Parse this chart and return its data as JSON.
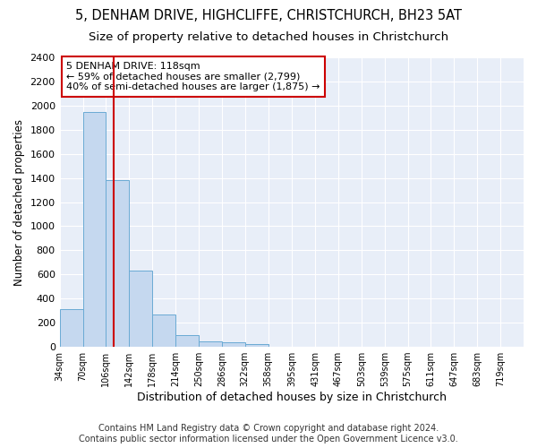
{
  "title1": "5, DENHAM DRIVE, HIGHCLIFFE, CHRISTCHURCH, BH23 5AT",
  "title2": "Size of property relative to detached houses in Christchurch",
  "xlabel": "Distribution of detached houses by size in Christchurch",
  "ylabel": "Number of detached properties",
  "bin_edges": [
    34,
    70,
    106,
    142,
    178,
    214,
    250,
    286,
    322,
    358,
    395,
    431,
    467,
    503,
    539,
    575,
    611,
    647,
    683,
    719,
    755
  ],
  "bar_heights": [
    315,
    1950,
    1380,
    630,
    270,
    100,
    45,
    40,
    25,
    0,
    0,
    0,
    0,
    0,
    0,
    0,
    0,
    0,
    0,
    0
  ],
  "bar_color": "#c5d8ef",
  "bar_edge_color": "#6aaad4",
  "property_size": 118,
  "annotation_title": "5 DENHAM DRIVE: 118sqm",
  "annotation_line1": "← 59% of detached houses are smaller (2,799)",
  "annotation_line2": "40% of semi-detached houses are larger (1,875) →",
  "vline_color": "#cc0000",
  "annotation_box_color": "#cc0000",
  "ylim": [
    0,
    2400
  ],
  "yticks": [
    0,
    200,
    400,
    600,
    800,
    1000,
    1200,
    1400,
    1600,
    1800,
    2000,
    2200,
    2400
  ],
  "footer1": "Contains HM Land Registry data © Crown copyright and database right 2024.",
  "footer2": "Contains public sector information licensed under the Open Government Licence v3.0.",
  "background_color": "#ffffff",
  "plot_background": "#e8eef8",
  "title1_fontsize": 10.5,
  "title2_fontsize": 9.5,
  "xlabel_fontsize": 9,
  "ylabel_fontsize": 8.5,
  "footer_fontsize": 7,
  "annotation_fontsize": 8
}
